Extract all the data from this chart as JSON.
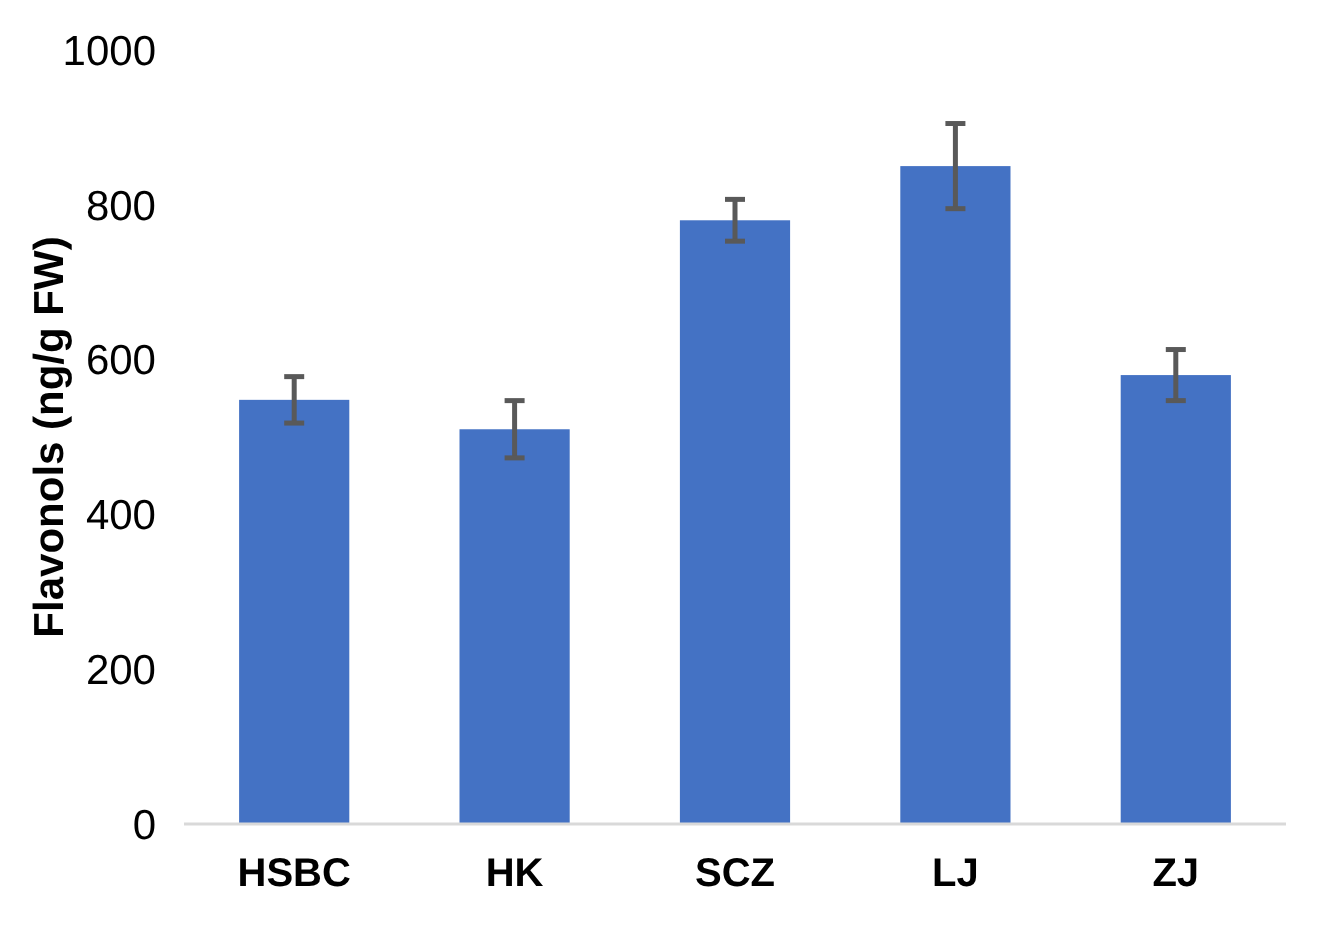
{
  "chart_data": {
    "type": "bar",
    "ylabel": "Flavonols (ng/g FW)",
    "categories": [
      "HSBC",
      "HK",
      "SCZ",
      "LJ",
      "ZJ"
    ],
    "values": [
      548,
      510,
      780,
      850,
      580
    ],
    "errors": [
      30,
      37,
      27,
      55,
      33
    ],
    "color": "#4472c4",
    "ylim": [
      0,
      1000
    ],
    "yticks": [
      0,
      200,
      400,
      600,
      800,
      1000
    ],
    "grid": false
  }
}
